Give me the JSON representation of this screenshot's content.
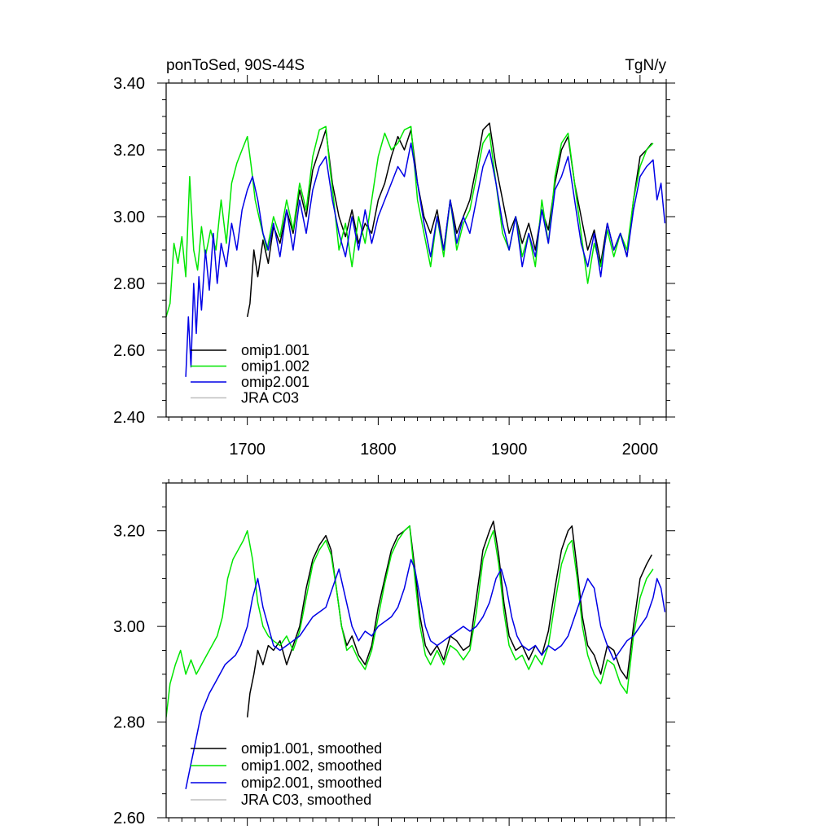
{
  "chart_data": [
    {
      "type": "line",
      "title_left": "ponToSed, 90S-44S",
      "title_right": "TgN/y",
      "xlim": [
        1638,
        2020
      ],
      "ylim": [
        2.4,
        3.4
      ],
      "x_ticks": [
        1700,
        1800,
        1900,
        2000
      ],
      "x_tick_labels": [
        "1700",
        "1800",
        "1900",
        "2000"
      ],
      "y_ticks": [
        2.4,
        2.6,
        2.8,
        3.0,
        3.2,
        3.4
      ],
      "y_tick_labels": [
        "2.40",
        "2.60",
        "2.80",
        "3.00",
        "3.20",
        "3.40"
      ],
      "legend_position": "bottom-left",
      "series": [
        {
          "name": "omip1.001",
          "color": "#000000",
          "x": [
            1700,
            1702,
            1705,
            1708,
            1712,
            1716,
            1720,
            1725,
            1730,
            1735,
            1740,
            1745,
            1750,
            1755,
            1760,
            1765,
            1770,
            1775,
            1780,
            1785,
            1790,
            1795,
            1800,
            1805,
            1810,
            1815,
            1820,
            1825,
            1830,
            1835,
            1840,
            1845,
            1850,
            1855,
            1860,
            1865,
            1870,
            1875,
            1880,
            1885,
            1890,
            1895,
            1900,
            1905,
            1910,
            1915,
            1920,
            1925,
            1930,
            1935,
            1940,
            1945,
            1950,
            1955,
            1960,
            1965,
            1970,
            1975,
            1980,
            1985,
            1990,
            1995,
            2000,
            2005,
            2009
          ],
          "y": [
            2.7,
            2.74,
            2.9,
            2.82,
            2.93,
            2.86,
            2.97,
            2.92,
            3.02,
            2.95,
            3.08,
            3.0,
            3.14,
            3.2,
            3.26,
            3.1,
            3.0,
            2.94,
            3.02,
            2.92,
            2.98,
            2.95,
            3.05,
            3.1,
            3.18,
            3.24,
            3.2,
            3.26,
            3.1,
            3.0,
            2.95,
            3.02,
            2.9,
            3.05,
            2.95,
            3.0,
            3.05,
            3.15,
            3.26,
            3.28,
            3.15,
            3.05,
            2.95,
            3.0,
            2.92,
            2.98,
            2.9,
            3.02,
            2.96,
            3.1,
            3.2,
            3.24,
            3.1,
            3.0,
            2.9,
            2.96,
            2.86,
            2.98,
            2.9,
            2.95,
            2.88,
            3.05,
            3.18,
            3.2,
            3.22
          ]
        },
        {
          "name": "omip1.002",
          "color": "#00e600",
          "x": [
            1638,
            1641,
            1644,
            1647,
            1650,
            1653,
            1656,
            1659,
            1662,
            1665,
            1668,
            1672,
            1676,
            1680,
            1684,
            1688,
            1692,
            1696,
            1700,
            1703,
            1706,
            1710,
            1715,
            1720,
            1725,
            1730,
            1735,
            1740,
            1745,
            1750,
            1755,
            1760,
            1763,
            1766,
            1770,
            1775,
            1780,
            1785,
            1790,
            1795,
            1800,
            1805,
            1810,
            1815,
            1820,
            1825,
            1830,
            1835,
            1840,
            1845,
            1850,
            1855,
            1860,
            1865,
            1870,
            1875,
            1880,
            1885,
            1890,
            1895,
            1900,
            1905,
            1910,
            1915,
            1920,
            1925,
            1930,
            1935,
            1940,
            1945,
            1950,
            1955,
            1960,
            1965,
            1970,
            1975,
            1980,
            1985,
            1990,
            1995,
            2000,
            2005,
            2010
          ],
          "y": [
            2.7,
            2.74,
            2.92,
            2.86,
            2.94,
            2.82,
            3.12,
            2.9,
            2.84,
            2.97,
            2.88,
            2.96,
            2.9,
            3.05,
            2.92,
            3.1,
            3.16,
            3.2,
            3.24,
            3.15,
            3.05,
            2.98,
            2.9,
            3.0,
            2.94,
            3.05,
            2.96,
            3.1,
            3.02,
            3.18,
            3.26,
            3.27,
            3.15,
            3.05,
            2.9,
            2.98,
            2.85,
            3.0,
            2.92,
            3.05,
            3.18,
            3.25,
            3.2,
            3.22,
            3.26,
            3.27,
            3.05,
            2.95,
            2.85,
            3.0,
            2.88,
            3.05,
            2.9,
            2.98,
            3.02,
            3.12,
            3.22,
            3.25,
            3.1,
            2.95,
            2.9,
            3.0,
            2.88,
            2.95,
            2.85,
            3.05,
            2.92,
            3.12,
            3.22,
            3.25,
            3.1,
            2.95,
            2.8,
            2.92,
            2.85,
            2.96,
            2.88,
            2.95,
            2.9,
            3.05,
            3.15,
            3.2,
            3.22
          ]
        },
        {
          "name": "omip2.001",
          "color": "#0000e6",
          "x": [
            1653,
            1655,
            1657,
            1659,
            1661,
            1663,
            1665,
            1668,
            1671,
            1674,
            1677,
            1680,
            1684,
            1688,
            1692,
            1696,
            1700,
            1704,
            1708,
            1712,
            1716,
            1720,
            1725,
            1730,
            1735,
            1740,
            1745,
            1750,
            1755,
            1760,
            1765,
            1770,
            1775,
            1780,
            1785,
            1790,
            1795,
            1800,
            1805,
            1810,
            1815,
            1820,
            1825,
            1830,
            1835,
            1840,
            1845,
            1850,
            1855,
            1860,
            1865,
            1870,
            1875,
            1880,
            1885,
            1890,
            1895,
            1900,
            1905,
            1910,
            1915,
            1920,
            1925,
            1930,
            1935,
            1940,
            1945,
            1950,
            1955,
            1960,
            1965,
            1970,
            1975,
            1980,
            1985,
            1990,
            1995,
            2000,
            2005,
            2010,
            2013,
            2016,
            2019
          ],
          "y": [
            2.52,
            2.7,
            2.55,
            2.8,
            2.65,
            2.82,
            2.72,
            2.9,
            2.78,
            2.95,
            2.8,
            2.92,
            2.85,
            2.98,
            2.9,
            3.02,
            3.08,
            3.12,
            3.05,
            2.95,
            2.9,
            2.98,
            2.88,
            3.02,
            2.9,
            3.05,
            2.95,
            3.08,
            3.15,
            3.18,
            3.05,
            2.95,
            2.88,
            3.0,
            2.9,
            3.02,
            2.92,
            3.0,
            3.05,
            3.1,
            3.15,
            3.12,
            3.22,
            3.1,
            2.98,
            2.88,
            3.0,
            2.9,
            3.05,
            2.92,
            3.0,
            2.95,
            3.05,
            3.15,
            3.2,
            3.1,
            2.98,
            2.9,
            3.0,
            2.85,
            2.95,
            2.88,
            3.02,
            2.92,
            3.08,
            3.12,
            3.18,
            3.05,
            2.92,
            2.85,
            2.95,
            2.82,
            2.98,
            2.9,
            2.95,
            2.88,
            3.02,
            3.12,
            3.15,
            3.17,
            3.05,
            3.1,
            2.98
          ]
        },
        {
          "name": "JRA C03",
          "color": "#bfbfbf",
          "x": [],
          "y": []
        }
      ]
    },
    {
      "type": "line",
      "xlim": [
        1638,
        2020
      ],
      "ylim": [
        2.6,
        3.3
      ],
      "x_ticks": [
        1700,
        1800,
        1900,
        2000
      ],
      "y_ticks": [
        2.6,
        2.8,
        3.0,
        3.2
      ],
      "y_tick_labels": [
        "2.60",
        "2.80",
        "3.00",
        "3.20"
      ],
      "legend_position": "bottom-left",
      "series": [
        {
          "name": "omip1.001, smoothed",
          "color": "#000000",
          "x": [
            1700,
            1702,
            1705,
            1708,
            1712,
            1716,
            1720,
            1725,
            1730,
            1735,
            1740,
            1745,
            1750,
            1755,
            1760,
            1764,
            1768,
            1772,
            1776,
            1780,
            1785,
            1790,
            1795,
            1800,
            1805,
            1810,
            1815,
            1820,
            1824,
            1828,
            1832,
            1836,
            1840,
            1845,
            1850,
            1855,
            1860,
            1865,
            1870,
            1875,
            1880,
            1885,
            1888,
            1892,
            1896,
            1900,
            1905,
            1910,
            1915,
            1920,
            1925,
            1930,
            1935,
            1940,
            1945,
            1948,
            1952,
            1956,
            1960,
            1965,
            1970,
            1975,
            1980,
            1985,
            1990,
            1995,
            2000,
            2005,
            2009
          ],
          "y": [
            2.81,
            2.86,
            2.9,
            2.95,
            2.92,
            2.96,
            2.95,
            2.97,
            2.92,
            2.96,
            3.0,
            3.08,
            3.14,
            3.17,
            3.19,
            3.16,
            3.08,
            3.0,
            2.96,
            2.98,
            2.94,
            2.92,
            2.96,
            3.04,
            3.1,
            3.16,
            3.19,
            3.2,
            3.21,
            3.12,
            3.02,
            2.96,
            2.94,
            2.96,
            2.93,
            2.98,
            2.97,
            2.95,
            2.96,
            3.06,
            3.16,
            3.2,
            3.22,
            3.15,
            3.05,
            2.98,
            2.95,
            2.96,
            2.93,
            2.96,
            2.94,
            2.99,
            3.08,
            3.16,
            3.2,
            3.21,
            3.12,
            3.02,
            2.96,
            2.94,
            2.9,
            2.96,
            2.95,
            2.91,
            2.89,
            3.0,
            3.1,
            3.13,
            3.15
          ]
        },
        {
          "name": "omip1.002, smoothed",
          "color": "#00e600",
          "x": [
            1638,
            1641,
            1645,
            1649,
            1653,
            1657,
            1661,
            1665,
            1669,
            1673,
            1677,
            1681,
            1685,
            1689,
            1693,
            1697,
            1700,
            1704,
            1708,
            1712,
            1716,
            1720,
            1725,
            1730,
            1735,
            1740,
            1745,
            1750,
            1755,
            1760,
            1764,
            1768,
            1772,
            1776,
            1780,
            1785,
            1790,
            1795,
            1800,
            1805,
            1810,
            1815,
            1820,
            1824,
            1828,
            1832,
            1836,
            1840,
            1845,
            1850,
            1855,
            1860,
            1865,
            1870,
            1875,
            1880,
            1885,
            1888,
            1892,
            1896,
            1900,
            1905,
            1910,
            1915,
            1920,
            1925,
            1930,
            1935,
            1940,
            1945,
            1948,
            1952,
            1956,
            1960,
            1965,
            1970,
            1975,
            1980,
            1985,
            1990,
            1995,
            2000,
            2005,
            2010
          ],
          "y": [
            2.81,
            2.88,
            2.92,
            2.95,
            2.9,
            2.93,
            2.9,
            2.92,
            2.94,
            2.96,
            2.98,
            3.02,
            3.1,
            3.14,
            3.16,
            3.18,
            3.2,
            3.14,
            3.05,
            3.0,
            2.98,
            2.97,
            2.96,
            2.98,
            2.95,
            2.99,
            3.06,
            3.13,
            3.16,
            3.18,
            3.15,
            3.08,
            3.0,
            2.95,
            2.96,
            2.93,
            2.91,
            2.95,
            3.02,
            3.09,
            3.15,
            3.18,
            3.2,
            3.21,
            3.1,
            3.0,
            2.94,
            2.92,
            2.95,
            2.92,
            2.96,
            2.95,
            2.93,
            2.95,
            3.03,
            3.14,
            3.18,
            3.2,
            3.13,
            3.03,
            2.96,
            2.93,
            2.94,
            2.91,
            2.94,
            2.92,
            2.96,
            3.05,
            3.13,
            3.17,
            3.18,
            3.1,
            3.0,
            2.94,
            2.9,
            2.88,
            2.93,
            2.92,
            2.88,
            2.86,
            2.98,
            3.06,
            3.1,
            3.12
          ]
        },
        {
          "name": "omip2.001, smoothed",
          "color": "#0000e6",
          "x": [
            1653,
            1656,
            1659,
            1662,
            1665,
            1668,
            1671,
            1675,
            1679,
            1683,
            1687,
            1691,
            1695,
            1700,
            1704,
            1708,
            1712,
            1716,
            1720,
            1725,
            1730,
            1735,
            1740,
            1745,
            1750,
            1755,
            1760,
            1765,
            1770,
            1775,
            1780,
            1785,
            1790,
            1795,
            1800,
            1805,
            1810,
            1815,
            1820,
            1825,
            1828,
            1832,
            1836,
            1840,
            1845,
            1850,
            1855,
            1860,
            1865,
            1870,
            1875,
            1880,
            1885,
            1890,
            1894,
            1898,
            1902,
            1906,
            1910,
            1915,
            1920,
            1925,
            1930,
            1935,
            1940,
            1945,
            1950,
            1955,
            1960,
            1965,
            1970,
            1975,
            1980,
            1985,
            1990,
            1995,
            2000,
            2005,
            2010,
            2013,
            2016,
            2019
          ],
          "y": [
            2.66,
            2.7,
            2.74,
            2.78,
            2.82,
            2.84,
            2.86,
            2.88,
            2.9,
            2.92,
            2.93,
            2.94,
            2.96,
            3.0,
            3.06,
            3.1,
            3.04,
            3.0,
            2.96,
            2.95,
            2.96,
            2.97,
            2.98,
            3.0,
            3.02,
            3.03,
            3.04,
            3.08,
            3.12,
            3.06,
            3.0,
            2.97,
            2.99,
            2.98,
            3.0,
            3.01,
            3.02,
            3.04,
            3.08,
            3.14,
            3.12,
            3.06,
            3.0,
            2.97,
            2.96,
            2.97,
            2.98,
            2.99,
            3.0,
            2.99,
            3.0,
            3.02,
            3.05,
            3.1,
            3.12,
            3.08,
            3.02,
            2.98,
            2.96,
            2.95,
            2.96,
            2.94,
            2.96,
            2.95,
            2.96,
            2.98,
            3.02,
            3.06,
            3.1,
            3.08,
            3.0,
            2.96,
            2.93,
            2.95,
            2.97,
            2.98,
            3.0,
            3.02,
            3.06,
            3.1,
            3.08,
            3.03
          ]
        },
        {
          "name": "JRA C03, smoothed",
          "color": "#bfbfbf",
          "x": [],
          "y": []
        }
      ]
    }
  ]
}
